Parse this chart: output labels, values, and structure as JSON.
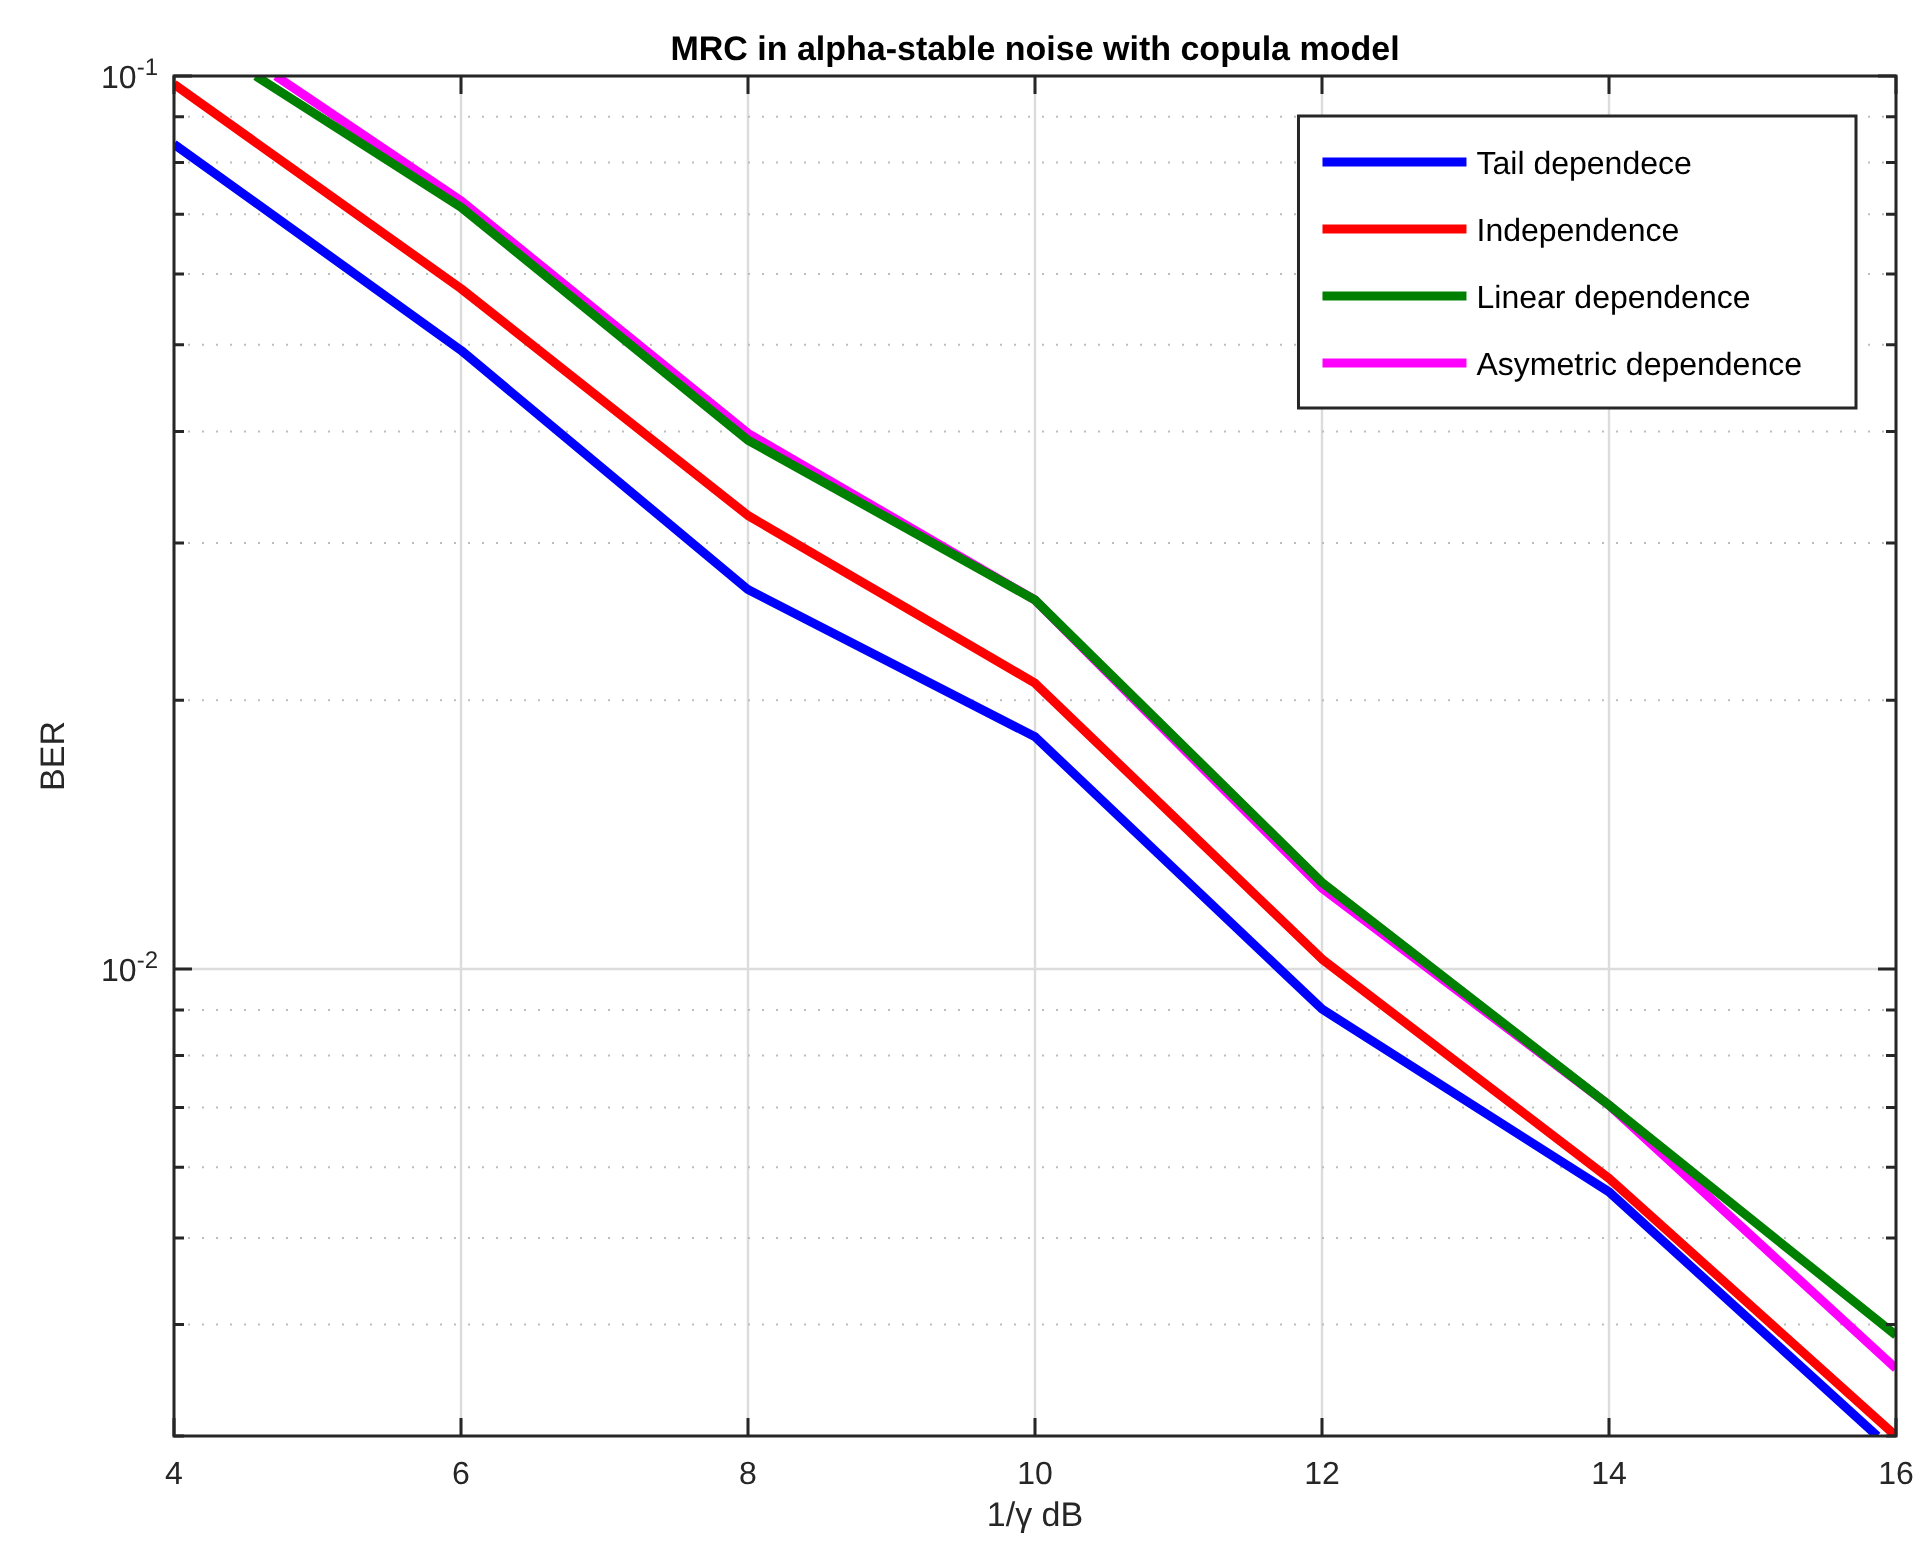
{
  "chart_data": {
    "type": "line",
    "title": "MRC in alpha-stable noise with copula model",
    "xlabel": "1/γ dB",
    "ylabel": "BER",
    "x": [
      4,
      6,
      8,
      10,
      12,
      14,
      16
    ],
    "series": [
      {
        "name": "Tail dependece",
        "color": "#0000ff",
        "x": [
          4,
          6,
          8,
          10,
          12,
          14,
          15.87
        ],
        "values": [
          0.0839,
          0.0493,
          0.0266,
          0.0182,
          0.00902,
          0.00563,
          0.003
        ]
      },
      {
        "name": "Independence",
        "color": "#ff0000",
        "values": [
          0.0979,
          0.0578,
          0.0322,
          0.0209,
          0.01026,
          0.00583,
          0.003
        ]
      },
      {
        "name": "Linear dependence",
        "color": "#008000",
        "x": [
          4.57,
          6,
          8,
          10,
          12,
          14,
          16
        ],
        "values": [
          0.1,
          0.0713,
          0.0391,
          0.0259,
          0.0125,
          0.00704,
          0.00389
        ]
      },
      {
        "name": "Asymetric dependence",
        "color": "#ff00ff",
        "x": [
          4.71,
          6,
          8,
          10,
          12,
          14,
          16
        ],
        "values": [
          0.1,
          0.0725,
          0.0398,
          0.0259,
          0.01232,
          0.00704,
          0.00357
        ]
      }
    ],
    "log": "y",
    "xlim": [
      4,
      16
    ],
    "ylim": [
      0.003,
      0.1
    ],
    "xticks": [
      4,
      6,
      8,
      10,
      12,
      14,
      16
    ],
    "yticks": [
      {
        "value": 0.003,
        "label": null
      },
      {
        "value": 0.004,
        "label": null
      },
      {
        "value": 0.005,
        "label": null
      },
      {
        "value": 0.006,
        "label": null
      },
      {
        "value": 0.007,
        "label": null
      },
      {
        "value": 0.008,
        "label": null
      },
      {
        "value": 0.009,
        "label": null
      },
      {
        "value": 0.01,
        "label": "10$^{-2}$"
      },
      {
        "value": 0.02,
        "label": null
      },
      {
        "value": 0.03,
        "label": null
      },
      {
        "value": 0.04,
        "label": null
      },
      {
        "value": 0.05,
        "label": null
      },
      {
        "value": 0.06,
        "label": null
      },
      {
        "value": 0.07,
        "label": null
      },
      {
        "value": 0.08,
        "label": null
      },
      {
        "value": 0.09,
        "label": null
      },
      {
        "value": 0.1,
        "label": "10$^{-1}$"
      }
    ],
    "grid": true,
    "legend": "top right",
    "marker": "none",
    "line_style": "solid"
  }
}
